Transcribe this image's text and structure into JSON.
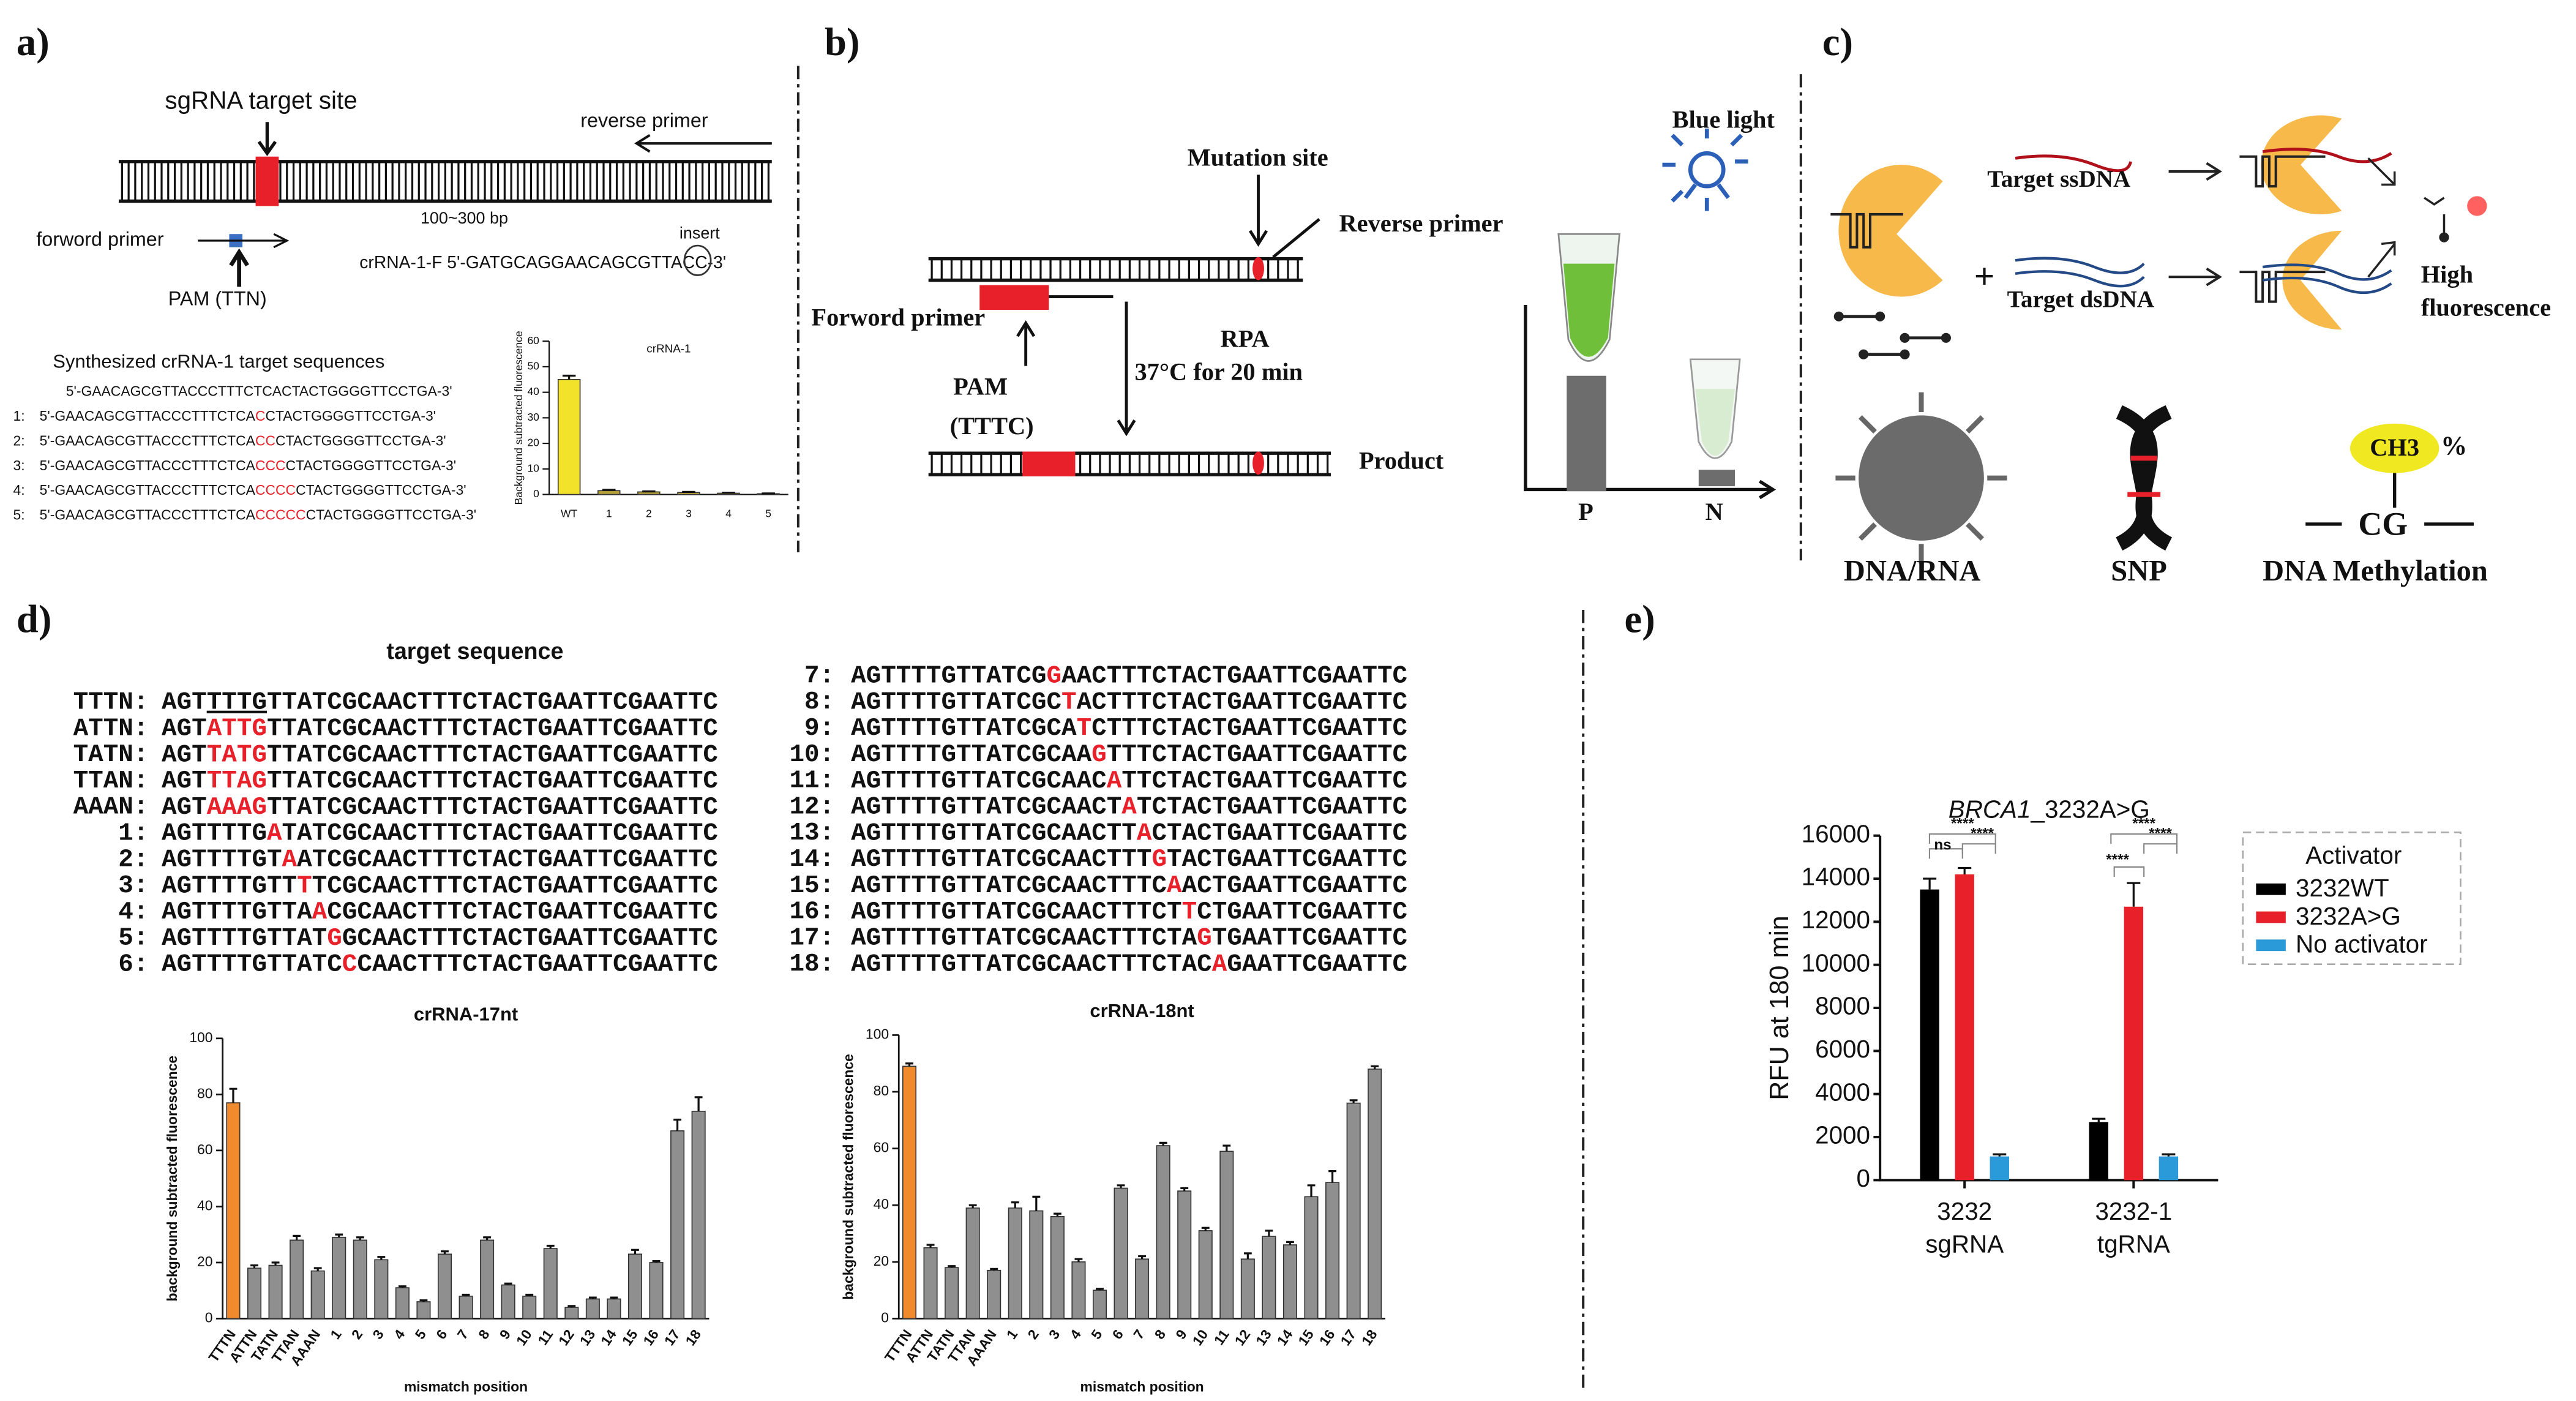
{
  "panels": {
    "a": {
      "label": "a)",
      "sgrna_target_site": "sgRNA target site",
      "reverse_primer": "reverse primer",
      "length": "100~300 bp",
      "insert": "insert",
      "forward_primer": "forword primer",
      "pam": "PAM (TTN)",
      "crrna": "crRNA-1-F  5'-GATGCAGGAACAGCGTTACC-3'",
      "seq_title": "Synthesized crRNA-1 target  sequences",
      "seq_header": "5'-GAACAGCGTTACCCTTTCTCACTACTGGGGTTCCTGA-3'",
      "seq_rows": [
        {
          "label": "1:",
          "parts": [
            "5'-GAACAGCGTTACCCTTTCTCA",
            "C",
            "CTACTGGGGTTCCTGA-3'"
          ]
        },
        {
          "label": "2:",
          "parts": [
            "5'-GAACAGCGTTACCCTTTCTCA",
            "CC",
            "CTACTGGGGTTCCTGA-3'"
          ]
        },
        {
          "label": "3:",
          "parts": [
            "5'-GAACAGCGTTACCCTTTCTCA",
            "CCC",
            "CTACTGGGGTTCCTGA-3'"
          ]
        },
        {
          "label": "4:",
          "parts": [
            "5'-GAACAGCGTTACCCTTTCTCA",
            "CCCC",
            "CTACTGGGGTTCCTGA-3'"
          ]
        },
        {
          "label": "5:",
          "parts": [
            "5'-GAACAGCGTTACCCTTTCTCA",
            "CCCCC",
            "CTACTGGGGTTCCTGA-3'"
          ]
        }
      ]
    },
    "b": {
      "label": "b)",
      "mutation_site": "Mutation site",
      "reverse_primer": "Reverse primer",
      "forward_primer": "Forword primer",
      "pam": "PAM",
      "pam_seq": "(TTTC)",
      "rpa": "RPA",
      "condition": "37°C for 20 min",
      "product": "Product",
      "blue_light": "Blue light",
      "p": "P",
      "n": "N"
    },
    "c": {
      "label": "c)",
      "ssdna": "Target ssDNA",
      "dsdna": "Target dsDNA",
      "plus": "+",
      "high": "High",
      "fluorescence": "fluorescence",
      "dna_rna": "DNA/RNA",
      "snp": "SNP",
      "ch3": "CH3",
      "percent": "%",
      "cg": "CG",
      "methylation": "DNA Methylation"
    },
    "d": {
      "label": "d)",
      "title": "target sequence",
      "rows": [
        {
          "label": "TTTN:",
          "parts": [
            "AGT",
            "TTTG",
            "TTATCGCAACTTTCTACTGAATTCGAATTC"
          ]
        },
        {
          "label": "ATTN:",
          "parts": [
            "AGT",
            "ATTG",
            "TTATCGCAACTTTCTACTGAATTCGAATTC"
          ]
        },
        {
          "label": "TATN:",
          "parts": [
            "AGT",
            "TATG",
            "TTATCGCAACTTTCTACTGAATTCGAATTC"
          ]
        },
        {
          "label": "TTAN:",
          "parts": [
            "AGT",
            "TTAG",
            "TTATCGCAACTTTCTACTGAATTCGAATTC"
          ]
        },
        {
          "label": "AAAN:",
          "parts": [
            "AGT",
            "AAAG",
            "TTATCGCAACTTTCTACTGAATTCGAATTC"
          ]
        },
        {
          "label": "1:",
          "parts": [
            "AGTTTTG",
            "A",
            "TATCGCAACTTTCTACTGAATTCGAATTC"
          ]
        },
        {
          "label": "2:",
          "parts": [
            "AGTTTTGT",
            "A",
            "ATCGCAACTTTCTACTGAATTCGAATTC"
          ]
        },
        {
          "label": "3:",
          "parts": [
            "AGTTTTGTT",
            "T",
            "TCGCAACTTTCTACTGAATTCGAATTC"
          ]
        },
        {
          "label": "4:",
          "parts": [
            "AGTTTTGTTA",
            "A",
            "CGCAACTTTCTACTGAATTCGAATTC"
          ]
        },
        {
          "label": "5:",
          "parts": [
            "AGTTTTGTTAT",
            "G",
            "GCAACTTTCTACTGAATTCGAATTC"
          ]
        },
        {
          "label": "6:",
          "parts": [
            "AGTTTTGTTATC",
            "C",
            "CAACTTTCTACTGAATTCGAATTC"
          ]
        },
        {
          "label": "7:",
          "parts": [
            "AGTTTTGTTATCG",
            "G",
            "AACTTTCTACTGAATTCGAATTC"
          ]
        },
        {
          "label": "8:",
          "parts": [
            "AGTTTTGTTATCGC",
            "T",
            "ACTTTCTACTGAATTCGAATTC"
          ]
        },
        {
          "label": "9:",
          "parts": [
            "AGTTTTGTTATCGCA",
            "T",
            "CTTTCTACTGAATTCGAATTC"
          ]
        },
        {
          "label": "10:",
          "parts": [
            "AGTTTTGTTATCGCAA",
            "G",
            "TTTCTACTGAATTCGAATTC"
          ]
        },
        {
          "label": "11:",
          "parts": [
            "AGTTTTGTTATCGCAAC",
            "A",
            "TTCTACTGAATTCGAATTC"
          ]
        },
        {
          "label": "12:",
          "parts": [
            "AGTTTTGTTATCGCAACT",
            "A",
            "TCTACTGAATTCGAATTC"
          ]
        },
        {
          "label": "13:",
          "parts": [
            "AGTTTTGTTATCGCAACTT",
            "A",
            "CTACTGAATTCGAATTC"
          ]
        },
        {
          "label": "14:",
          "parts": [
            "AGTTTTGTTATCGCAACTTT",
            "G",
            "TACTGAATTCGAATTC"
          ]
        },
        {
          "label": "15:",
          "parts": [
            "AGTTTTGTTATCGCAACTTTC",
            "A",
            "ACTGAATTCGAATTC"
          ]
        },
        {
          "label": "16:",
          "parts": [
            "AGTTTTGTTATCGCAACTTTCT",
            "T",
            "CTGAATTCGAATTC"
          ]
        },
        {
          "label": "17:",
          "parts": [
            "AGTTTTGTTATCGCAACTTTCTA",
            "G",
            "TGAATTCGAATTC"
          ]
        },
        {
          "label": "18:",
          "parts": [
            "AGTTTTGTTATCGCAACTTTCTAC",
            "A",
            "GAATTCGAATTC"
          ]
        }
      ]
    },
    "e": {
      "label": "e)"
    }
  },
  "chart_data": [
    {
      "type": "bar",
      "title": "crRNA-1",
      "y_label": "Background subtracted fluorescence",
      "categories": [
        "WT",
        "1",
        "2",
        "3",
        "4",
        "5"
      ],
      "values": [
        45,
        1.5,
        1,
        0.8,
        0.5,
        0.3
      ],
      "errors": [
        1.5,
        0.3,
        0.2,
        0.2,
        0.2,
        0.1
      ],
      "colors": [
        "#f2e22a",
        "#b8a03a",
        "#b8a03a",
        "#b8a03a",
        "#b8a03a",
        "#b8a03a"
      ],
      "ylim": [
        0,
        60
      ],
      "yticks": [
        0,
        10,
        20,
        30,
        40,
        50,
        60
      ]
    },
    {
      "type": "bar",
      "title": "crRNA-17nt",
      "x_label": "mismatch position",
      "y_label": "background subtracted fluorescence",
      "categories": [
        "TTTN",
        "ATTN",
        "TATN",
        "TTAN",
        "AAAN",
        "1",
        "2",
        "3",
        "4",
        "5",
        "6",
        "7",
        "8",
        "9",
        "10",
        "11",
        "12",
        "13",
        "14",
        "15",
        "16",
        "17",
        "18"
      ],
      "values": [
        77,
        18,
        19,
        28,
        17,
        29,
        28,
        21,
        11,
        6,
        23,
        8,
        28,
        12,
        8,
        25,
        4,
        7,
        7,
        23,
        20,
        67,
        74
      ],
      "errors": [
        5,
        1,
        1,
        1.5,
        1,
        1,
        1,
        1,
        0.5,
        0.5,
        1,
        0.5,
        1,
        0.5,
        0.5,
        1,
        0.5,
        0.5,
        0.5,
        1.5,
        0.5,
        4,
        5
      ],
      "colors": [
        "#f08a2c",
        "#8f8f8f",
        "#8f8f8f",
        "#8f8f8f",
        "#8f8f8f",
        "#8f8f8f",
        "#8f8f8f",
        "#8f8f8f",
        "#8f8f8f",
        "#8f8f8f",
        "#8f8f8f",
        "#8f8f8f",
        "#8f8f8f",
        "#8f8f8f",
        "#8f8f8f",
        "#8f8f8f",
        "#8f8f8f",
        "#8f8f8f",
        "#8f8f8f",
        "#8f8f8f",
        "#8f8f8f",
        "#8f8f8f",
        "#8f8f8f"
      ],
      "ylim": [
        0,
        100
      ],
      "yticks": [
        0,
        20,
        40,
        60,
        80,
        100
      ]
    },
    {
      "type": "bar",
      "title": "crRNA-18nt",
      "x_label": "mismatch position",
      "y_label": "background subtracted fluorescence",
      "categories": [
        "TTTN",
        "ATTN",
        "TATN",
        "TTAN",
        "AAAN",
        "1",
        "2",
        "3",
        "4",
        "5",
        "6",
        "7",
        "8",
        "9",
        "10",
        "11",
        "12",
        "13",
        "14",
        "15",
        "16",
        "17",
        "18"
      ],
      "values": [
        89,
        25,
        18,
        39,
        17,
        39,
        38,
        36,
        20,
        10,
        46,
        21,
        61,
        45,
        31,
        59,
        21,
        29,
        26,
        43,
        48,
        76,
        88
      ],
      "errors": [
        1,
        1,
        0.5,
        1,
        0.5,
        2,
        5,
        1,
        1,
        0.5,
        1,
        1,
        1,
        1,
        1,
        2,
        2,
        2,
        1,
        4,
        4,
        1,
        1
      ],
      "colors": [
        "#f08a2c",
        "#8f8f8f",
        "#8f8f8f",
        "#8f8f8f",
        "#8f8f8f",
        "#8f8f8f",
        "#8f8f8f",
        "#8f8f8f",
        "#8f8f8f",
        "#8f8f8f",
        "#8f8f8f",
        "#8f8f8f",
        "#8f8f8f",
        "#8f8f8f",
        "#8f8f8f",
        "#8f8f8f",
        "#8f8f8f",
        "#8f8f8f",
        "#8f8f8f",
        "#8f8f8f",
        "#8f8f8f",
        "#8f8f8f",
        "#8f8f8f"
      ],
      "ylim": [
        0,
        100
      ],
      "yticks": [
        0,
        20,
        40,
        60,
        80,
        100
      ]
    },
    {
      "type": "grouped-bar",
      "title": [
        "BRCA1",
        "_3232A>G"
      ],
      "y_label": "RFU at 180 min",
      "legend_title": "Activator",
      "categories": [
        [
          "3232",
          "sgRNA"
        ],
        [
          "3232-1",
          "tgRNA"
        ]
      ],
      "series": [
        {
          "name": "3232WT",
          "color": "#000000",
          "values": [
            13500,
            2700
          ],
          "errors": [
            500,
            150
          ]
        },
        {
          "name": "3232A>G",
          "color": "#e8202a",
          "values": [
            14200,
            12700
          ],
          "errors": [
            300,
            1100
          ]
        },
        {
          "name": "No activator",
          "color": "#2a9ad8",
          "values": [
            1100,
            1100
          ],
          "errors": [
            100,
            100
          ]
        }
      ],
      "annotations": [
        {
          "text": "****",
          "color": "#2a9ad8"
        },
        {
          "text": "ns",
          "color": "#555555"
        },
        {
          "text": "****",
          "color": "#e8202a"
        },
        {
          "text": "****",
          "color": "#2a9ad8"
        },
        {
          "text": "****",
          "color": "#000000"
        },
        {
          "text": "****",
          "color": "#e8202a"
        }
      ],
      "ylim": [
        0,
        16000
      ],
      "yticks": [
        0,
        2000,
        4000,
        6000,
        8000,
        10000,
        12000,
        14000,
        16000
      ]
    }
  ]
}
